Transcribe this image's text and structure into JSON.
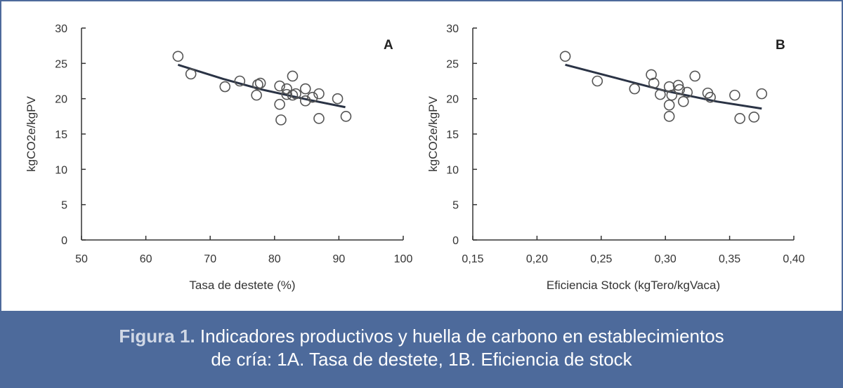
{
  "chart_data": [
    {
      "type": "scatter",
      "panel_label": "A",
      "xlabel": "Tasa de destete (%)",
      "ylabel": "kgCO2e/kgPV",
      "xlim": [
        50,
        100
      ],
      "ylim": [
        0,
        30
      ],
      "xticks": [
        "50",
        "60",
        "70",
        "80",
        "90",
        "100"
      ],
      "yticks": [
        "0",
        "5",
        "10",
        "15",
        "20",
        "25",
        "30"
      ],
      "grid": false,
      "points": [
        [
          65,
          26.0
        ],
        [
          67,
          23.5
        ],
        [
          72.3,
          21.7
        ],
        [
          74.6,
          22.5
        ],
        [
          77.2,
          20.5
        ],
        [
          77.4,
          22.0
        ],
        [
          77.8,
          22.2
        ],
        [
          80.8,
          21.8
        ],
        [
          80.8,
          19.2
        ],
        [
          81,
          17.0
        ],
        [
          81.9,
          21.4
        ],
        [
          81.9,
          20.6
        ],
        [
          82.8,
          20.5
        ],
        [
          82.8,
          23.2
        ],
        [
          83.3,
          20.7
        ],
        [
          84.8,
          21.4
        ],
        [
          84.8,
          19.7
        ],
        [
          85.9,
          20.2
        ],
        [
          86.9,
          20.7
        ],
        [
          86.9,
          17.2
        ],
        [
          89.8,
          20.0
        ],
        [
          91.1,
          17.5
        ]
      ],
      "trendline": {
        "x": [
          65,
          91
        ],
        "y": [
          24.8,
          18.8
        ],
        "curve": [
          [
            65,
            24.8
          ],
          [
            72,
            22.8
          ],
          [
            78,
            21.3
          ],
          [
            85,
            19.9
          ],
          [
            91,
            18.8
          ]
        ]
      }
    },
    {
      "type": "scatter",
      "panel_label": "B",
      "xlabel": "Eficiencia Stock (kgTero/kgVaca)",
      "ylabel": "kgCO2e/kgPV",
      "xlim": [
        0.15,
        0.4
      ],
      "ylim": [
        0,
        30
      ],
      "xticks": [
        "0,15",
        "0,20",
        "0,25",
        "0,30",
        "0,35",
        "0,40"
      ],
      "yticks": [
        "0",
        "5",
        "10",
        "15",
        "20",
        "25",
        "30"
      ],
      "grid": false,
      "points": [
        [
          0.222,
          26.0
        ],
        [
          0.247,
          22.5
        ],
        [
          0.276,
          21.4
        ],
        [
          0.289,
          23.4
        ],
        [
          0.291,
          22.2
        ],
        [
          0.296,
          20.6
        ],
        [
          0.303,
          21.7
        ],
        [
          0.305,
          20.5
        ],
        [
          0.303,
          19.1
        ],
        [
          0.303,
          17.5
        ],
        [
          0.31,
          21.9
        ],
        [
          0.311,
          21.3
        ],
        [
          0.314,
          19.6
        ],
        [
          0.317,
          20.9
        ],
        [
          0.323,
          23.2
        ],
        [
          0.333,
          20.8
        ],
        [
          0.335,
          20.2
        ],
        [
          0.354,
          20.5
        ],
        [
          0.358,
          17.2
        ],
        [
          0.369,
          17.4
        ],
        [
          0.375,
          20.7
        ]
      ],
      "trendline": {
        "curve": [
          [
            0.222,
            24.8
          ],
          [
            0.26,
            23.0
          ],
          [
            0.3,
            21.1
          ],
          [
            0.34,
            19.6
          ],
          [
            0.375,
            18.6
          ]
        ]
      }
    }
  ],
  "caption": {
    "lead": "Figura 1.",
    "line1": " Indicadores productivos y huella de carbono en establecimientos",
    "line2": "de cría: 1A. Tasa de destete, 1B. Eficiencia de stock"
  },
  "colors": {
    "band": "#4d6a9b",
    "marker": "#555555",
    "trend": "#2a3345"
  }
}
